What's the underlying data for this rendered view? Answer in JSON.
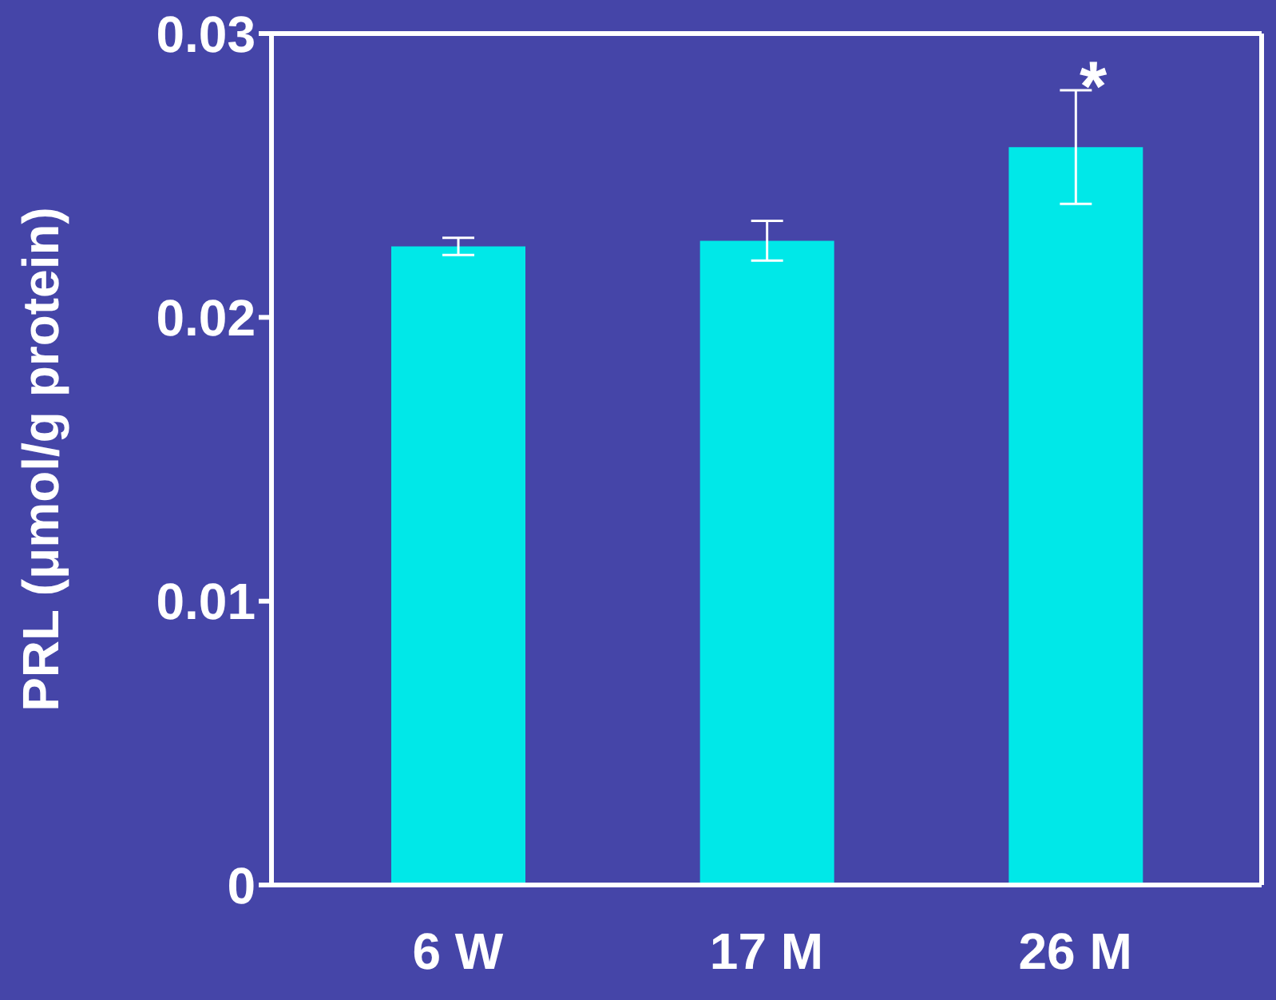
{
  "chart_data": {
    "type": "bar",
    "ylabel": "PRL (μmol/g protein)",
    "categories": [
      "6 W",
      "17 M",
      "26 M"
    ],
    "values": [
      0.0225,
      0.0227,
      0.026
    ],
    "errors": [
      0.0003,
      0.0007,
      0.002
    ],
    "color": "#00e8e8",
    "ylim": [
      0,
      0.03
    ],
    "yticks": [
      0,
      0.01,
      0.02,
      0.03
    ],
    "annotations": [
      "*"
    ]
  }
}
